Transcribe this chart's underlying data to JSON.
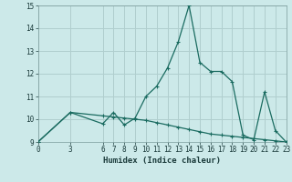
{
  "title": "",
  "xlabel": "Humidex (Indice chaleur)",
  "bg_color": "#cce9e9",
  "line_color": "#1a6b60",
  "grid_color": "#b0cece",
  "xlim": [
    0,
    23
  ],
  "ylim": [
    9,
    15
  ],
  "yticks": [
    9,
    10,
    11,
    12,
    13,
    14,
    15
  ],
  "xticks": [
    0,
    3,
    6,
    7,
    8,
    9,
    10,
    11,
    12,
    13,
    14,
    15,
    16,
    17,
    18,
    19,
    20,
    21,
    22,
    23
  ],
  "line1_x": [
    0,
    3,
    6,
    7,
    8,
    9,
    10,
    11,
    12,
    13,
    14,
    15,
    16,
    17,
    18,
    19,
    20,
    21,
    22,
    23
  ],
  "line1_y": [
    9.0,
    10.3,
    9.8,
    10.3,
    9.75,
    10.05,
    11.0,
    11.45,
    12.25,
    13.4,
    15.0,
    12.5,
    12.1,
    12.1,
    11.65,
    9.3,
    9.1,
    11.2,
    9.5,
    9.0
  ],
  "line2_x": [
    0,
    3,
    6,
    7,
    8,
    9,
    10,
    11,
    12,
    13,
    14,
    15,
    16,
    17,
    18,
    19,
    20,
    21,
    22,
    23
  ],
  "line2_y": [
    9.0,
    10.3,
    10.15,
    10.1,
    10.05,
    10.0,
    9.95,
    9.85,
    9.75,
    9.65,
    9.55,
    9.45,
    9.35,
    9.3,
    9.25,
    9.2,
    9.15,
    9.1,
    9.05,
    9.0
  ]
}
